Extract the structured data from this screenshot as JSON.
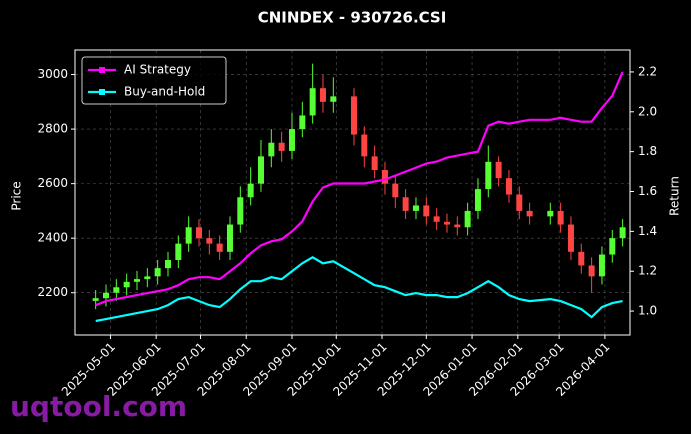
{
  "chart_data": {
    "type": "candlestick",
    "title": "CNINDEX - 930726.CSI",
    "ylabel": "Price",
    "y2label": "Return",
    "x": [
      "2025-04-21",
      "2025-04-28",
      "2025-05-05",
      "2025-05-12",
      "2025-05-19",
      "2025-05-26",
      "2025-06-02",
      "2025-06-09",
      "2025-06-16",
      "2025-06-23",
      "2025-06-30",
      "2025-07-07",
      "2025-07-14",
      "2025-07-21",
      "2025-07-28",
      "2025-08-04",
      "2025-08-11",
      "2025-08-18",
      "2025-08-25",
      "2025-09-01",
      "2025-09-08",
      "2025-09-15",
      "2025-09-22",
      "2025-09-29",
      "2025-10-13",
      "2025-10-20",
      "2025-10-27",
      "2025-11-03",
      "2025-11-10",
      "2025-11-17",
      "2025-11-24",
      "2025-12-01",
      "2025-12-08",
      "2025-12-15",
      "2025-12-22",
      "2025-12-29",
      "2026-01-05",
      "2026-01-12",
      "2026-01-19",
      "2026-01-26",
      "2026-02-02",
      "2026-02-09",
      "2026-02-23",
      "2026-03-02",
      "2026-03-09",
      "2026-03-16",
      "2026-03-23",
      "2026-03-30",
      "2026-04-06",
      "2026-04-13"
    ],
    "open": [
      2170,
      2180,
      2200,
      2220,
      2240,
      2250,
      2260,
      2290,
      2320,
      2380,
      2440,
      2400,
      2380,
      2350,
      2450,
      2550,
      2600,
      2700,
      2750,
      2720,
      2800,
      2850,
      2950,
      2900,
      2920,
      2780,
      2700,
      2650,
      2600,
      2550,
      2500,
      2520,
      2480,
      2460,
      2450,
      2440,
      2500,
      2580,
      2680,
      2620,
      2560,
      2500,
      2480,
      2500,
      2450,
      2350,
      2300,
      2260,
      2340,
      2400
    ],
    "high": [
      2210,
      2230,
      2250,
      2270,
      2280,
      2290,
      2320,
      2350,
      2410,
      2480,
      2470,
      2430,
      2410,
      2480,
      2590,
      2660,
      2760,
      2800,
      2790,
      2860,
      2900,
      3040,
      3000,
      2990,
      2950,
      2810,
      2740,
      2680,
      2630,
      2580,
      2550,
      2550,
      2510,
      2490,
      2480,
      2530,
      2620,
      2740,
      2700,
      2650,
      2590,
      2530,
      2530,
      2530,
      2480,
      2380,
      2330,
      2370,
      2430,
      2470
    ],
    "low": [
      2140,
      2150,
      2170,
      2190,
      2210,
      2220,
      2230,
      2260,
      2290,
      2350,
      2370,
      2340,
      2320,
      2320,
      2420,
      2520,
      2570,
      2660,
      2680,
      2690,
      2770,
      2820,
      2860,
      2860,
      2740,
      2660,
      2620,
      2560,
      2510,
      2470,
      2470,
      2450,
      2430,
      2420,
      2410,
      2410,
      2470,
      2550,
      2590,
      2530,
      2470,
      2450,
      2450,
      2420,
      2320,
      2270,
      2200,
      2230,
      2310,
      2370
    ],
    "close": [
      2180,
      2200,
      2220,
      2240,
      2250,
      2260,
      2290,
      2320,
      2380,
      2440,
      2400,
      2380,
      2350,
      2450,
      2550,
      2600,
      2700,
      2750,
      2720,
      2800,
      2850,
      2950,
      2900,
      2920,
      2780,
      2700,
      2650,
      2600,
      2550,
      2500,
      2520,
      2480,
      2460,
      2450,
      2440,
      2500,
      2580,
      2680,
      2620,
      2560,
      2500,
      2480,
      2500,
      2450,
      2350,
      2300,
      2260,
      2340,
      2400,
      2440
    ],
    "up_color": "#55ff33",
    "down_color": "#ff4444",
    "series": [
      {
        "name": "AI Strategy",
        "color": "#ff00ff",
        "axis": "y2",
        "values": [
          1.03,
          1.05,
          1.06,
          1.07,
          1.08,
          1.09,
          1.1,
          1.11,
          1.13,
          1.16,
          1.17,
          1.17,
          1.16,
          1.2,
          1.24,
          1.29,
          1.33,
          1.35,
          1.36,
          1.4,
          1.45,
          1.55,
          1.62,
          1.64,
          1.64,
          1.64,
          1.65,
          1.66,
          1.68,
          1.7,
          1.72,
          1.74,
          1.75,
          1.77,
          1.78,
          1.79,
          1.8,
          1.93,
          1.95,
          1.94,
          1.95,
          1.96,
          1.96,
          1.97,
          1.96,
          1.95,
          1.95,
          2.02,
          2.08,
          2.2
        ]
      },
      {
        "name": "Buy-and-Hold",
        "color": "#00ffff",
        "axis": "y2",
        "values": [
          0.95,
          0.96,
          0.97,
          0.98,
          0.99,
          1.0,
          1.01,
          1.03,
          1.06,
          1.07,
          1.05,
          1.03,
          1.02,
          1.06,
          1.11,
          1.15,
          1.15,
          1.17,
          1.16,
          1.2,
          1.24,
          1.27,
          1.24,
          1.25,
          1.19,
          1.16,
          1.13,
          1.12,
          1.1,
          1.08,
          1.09,
          1.08,
          1.08,
          1.07,
          1.07,
          1.09,
          1.12,
          1.15,
          1.12,
          1.08,
          1.06,
          1.05,
          1.06,
          1.05,
          1.03,
          1.01,
          0.97,
          1.02,
          1.04,
          1.05
        ]
      }
    ],
    "xlim": [
      "2025-04-07",
      "2026-04-18"
    ],
    "xticks": [
      "2025-05-01",
      "2025-06-01",
      "2025-07-01",
      "2025-08-01",
      "2025-09-01",
      "2025-10-01",
      "2025-11-01",
      "2025-12-01",
      "2026-01-01",
      "2026-02-01",
      "2026-03-01",
      "2026-04-01"
    ],
    "ylim": [
      2045,
      3090
    ],
    "yticks": [
      2200,
      2400,
      2600,
      2800,
      3000
    ],
    "y2lim": [
      0.88,
      2.31
    ],
    "y2ticks": [
      {
        "value": 1,
        "label": "1.0"
      },
      1.2,
      1.4,
      1.6,
      1.8,
      {
        "value": 2,
        "label": "2.0"
      },
      2.2
    ],
    "grid": true,
    "legend": "upper left"
  },
  "watermark": "uqtool.com"
}
